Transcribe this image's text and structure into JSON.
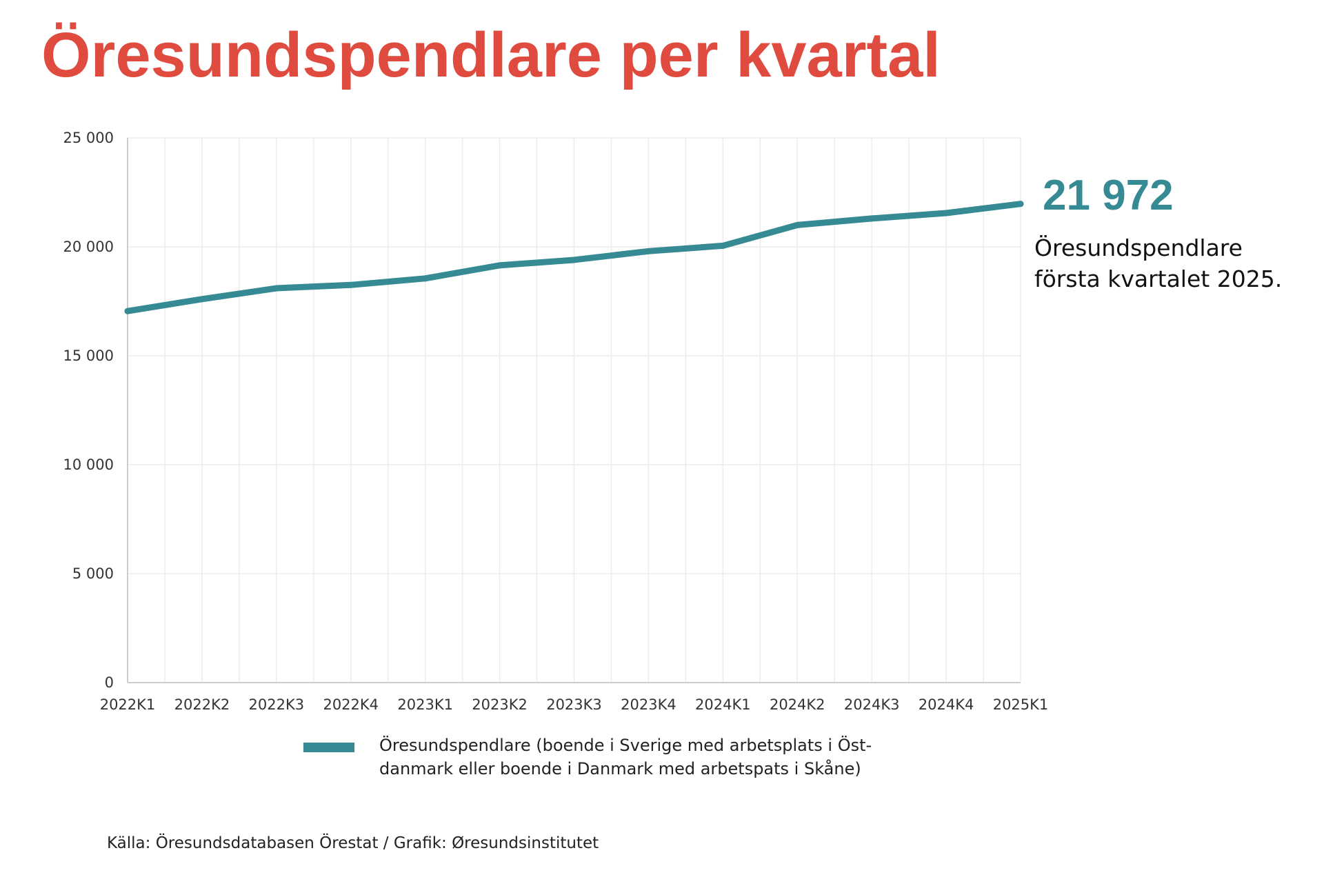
{
  "title": "Öresundspendlare per kvartal",
  "colors": {
    "title": "#e04b40",
    "series": "#368a94"
  },
  "highlight": {
    "value": "21 972",
    "text": "Öresundspendlare första kvartalet 2025."
  },
  "legend": {
    "label": "Öresundspendlare (boende i Sverige med arbetsplats i Öst-danmark eller boende i Danmark med arbetspats i Skåne)"
  },
  "source": "Källa: Öresundsdatabasen Örestat / Grafik: Øresundsinstitutet",
  "chart_data": {
    "type": "line",
    "title": "Öresundspendlare per kvartal",
    "xlabel": "",
    "ylabel": "",
    "ylim": [
      0,
      25000
    ],
    "yticks": [
      0,
      5000,
      10000,
      15000,
      20000,
      25000
    ],
    "ytick_labels": [
      "0",
      "5 000",
      "10 000",
      "15 000",
      "20 000",
      "25 000"
    ],
    "grid": true,
    "legend_position": "bottom",
    "categories": [
      "2022K1",
      "2022K2",
      "2022K3",
      "2022K4",
      "2023K1",
      "2023K2",
      "2023K3",
      "2023K4",
      "2024K1",
      "2024K2",
      "2024K3",
      "2024K4",
      "2025K1"
    ],
    "series": [
      {
        "name": "Öresundspendlare (boende i Sverige med arbetsplats i Öst-danmark eller boende i Danmark med arbetspats i Skåne)",
        "values": [
          17050,
          17600,
          18100,
          18250,
          18550,
          19150,
          19400,
          19800,
          20050,
          21000,
          21300,
          21550,
          21972
        ]
      }
    ]
  }
}
